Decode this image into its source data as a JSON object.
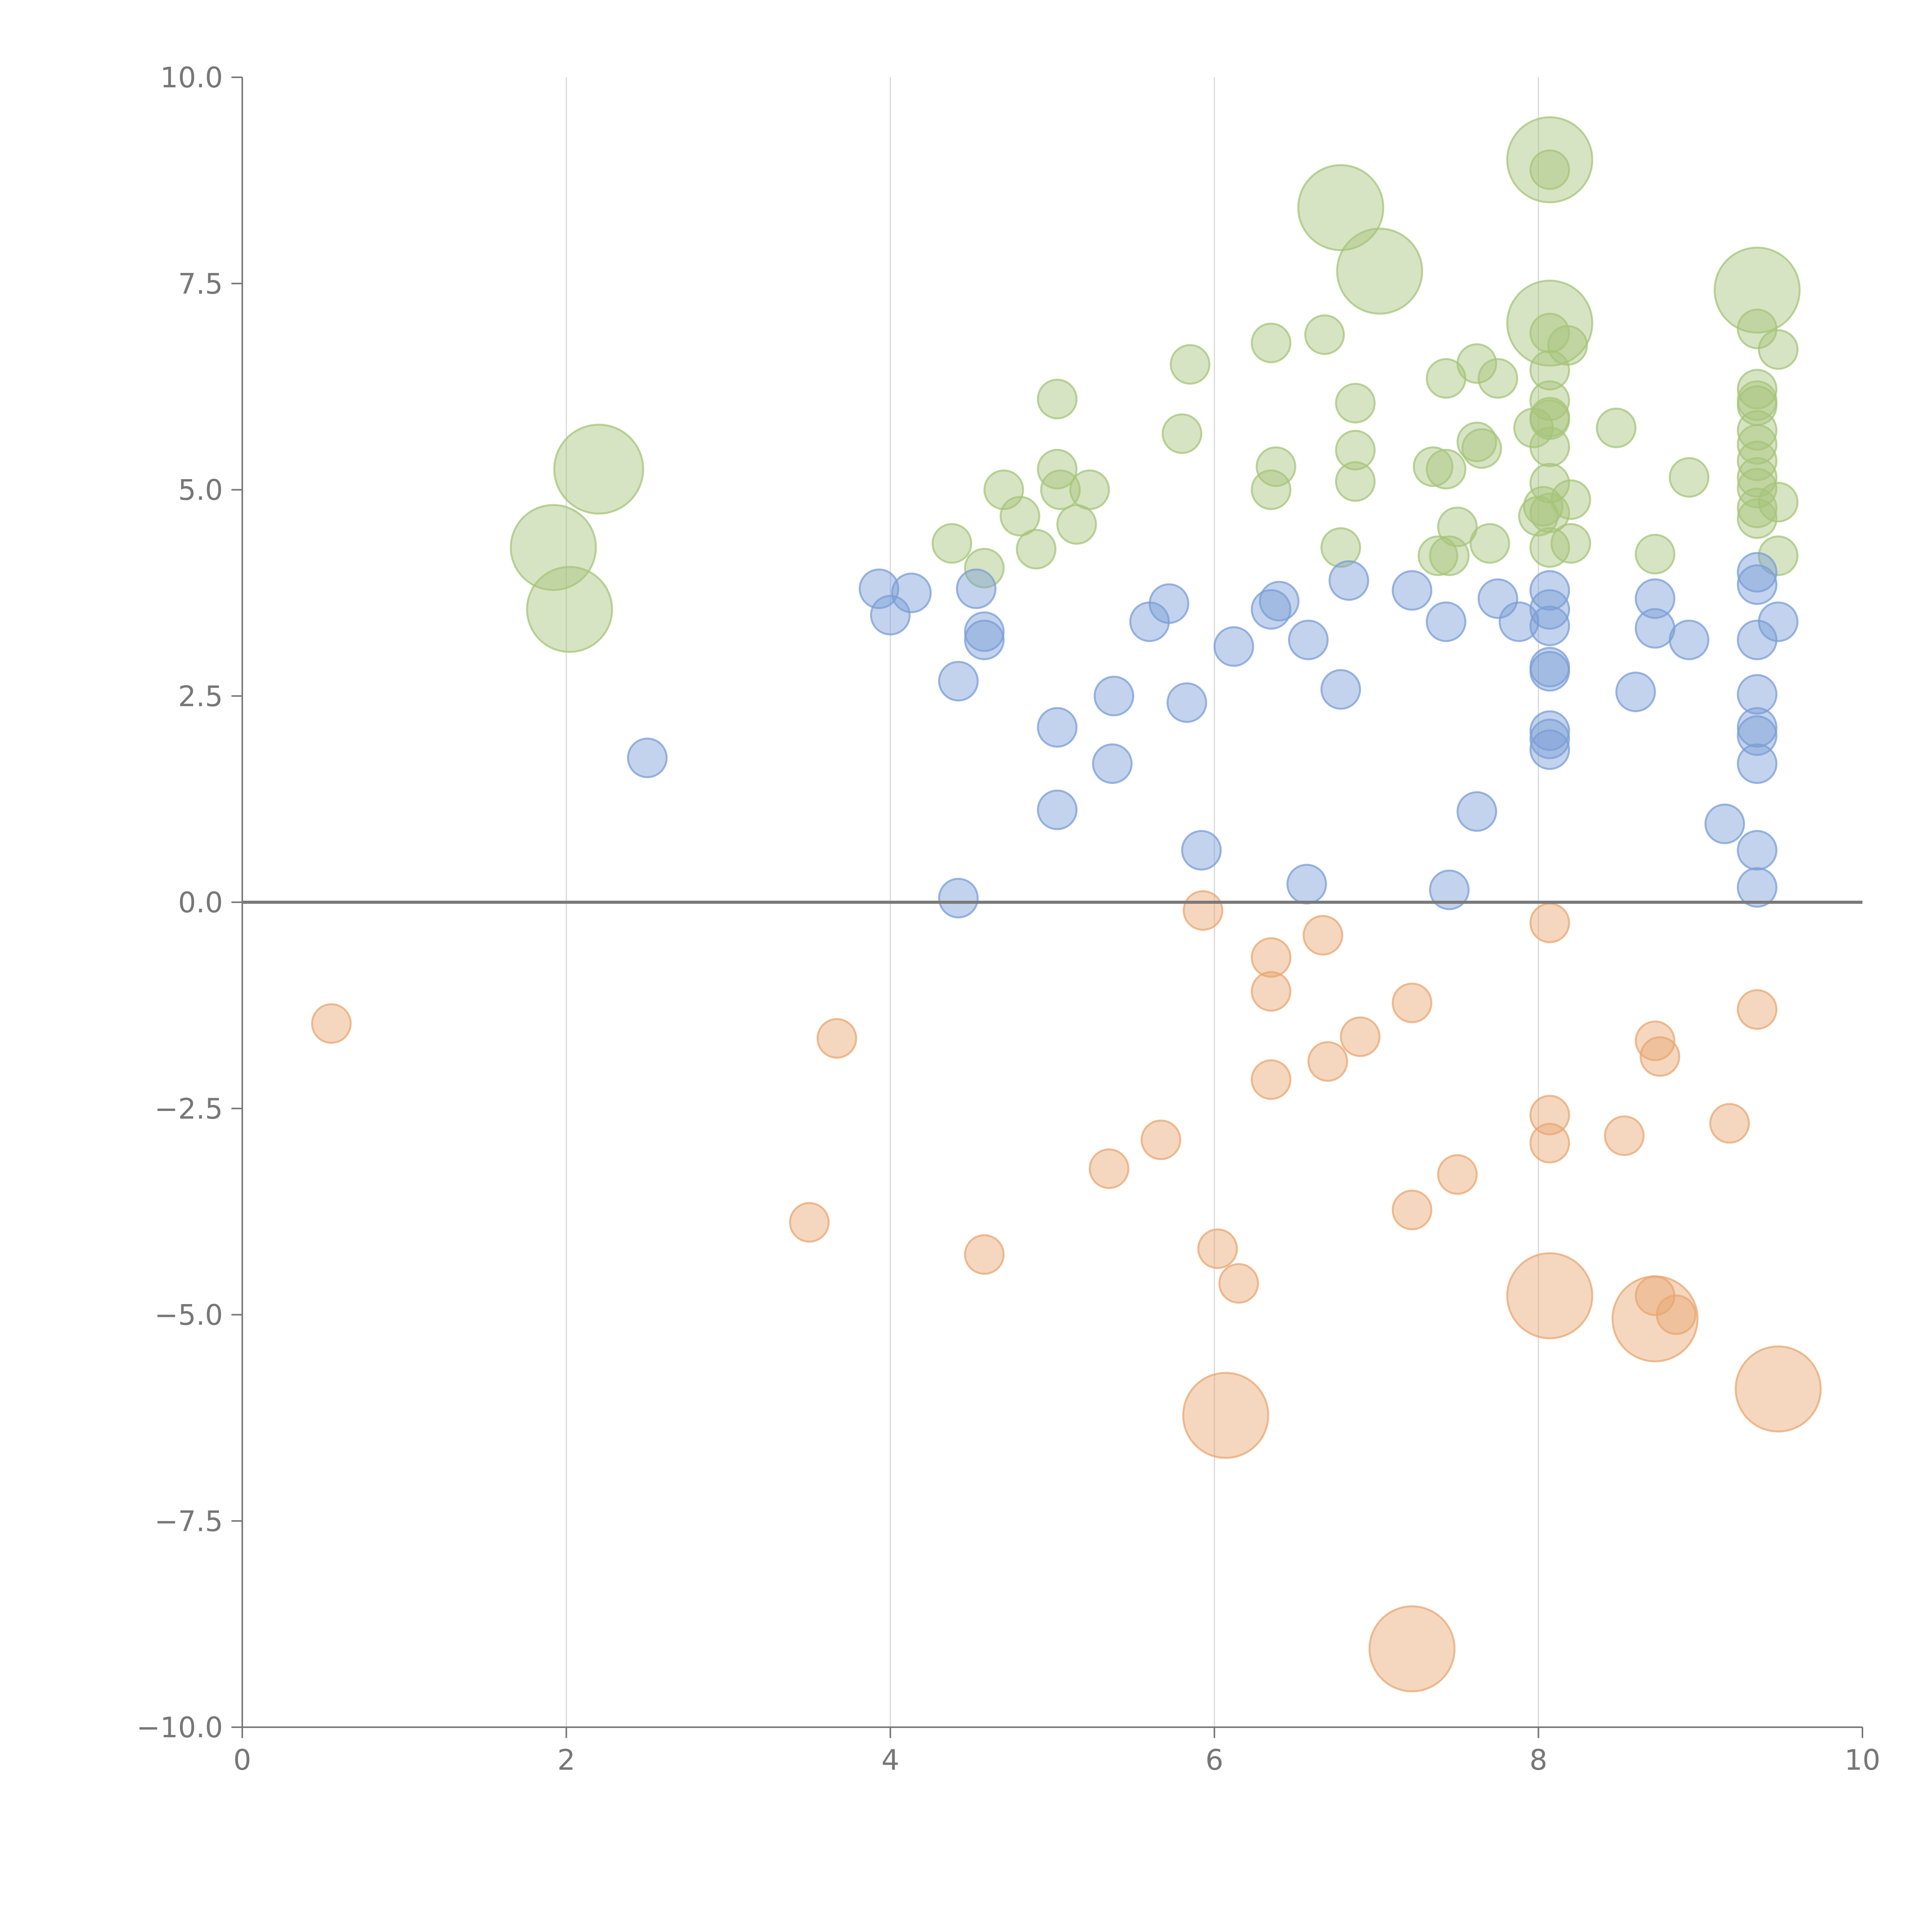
{
  "chart_data": {
    "type": "scatter",
    "title": "",
    "xlabel": "",
    "ylabel": "",
    "xlim": [
      0,
      10
    ],
    "ylim": [
      -10,
      10
    ],
    "x_ticks": [
      0,
      2,
      4,
      6,
      8,
      10
    ],
    "x_tick_labels": [
      "0",
      "2",
      "4",
      "6",
      "8",
      "10"
    ],
    "y_ticks": [
      10,
      7.5,
      5,
      2.5,
      0,
      -2.5,
      -5,
      -7.5,
      -10
    ],
    "y_tick_labels": [
      "10.0",
      "7.5",
      "5.0",
      "2.5",
      "0.0",
      "−2.5",
      "−5.0",
      "−7.5",
      "−10.0"
    ],
    "grid": "vertical",
    "reference_line_y": 0,
    "series": [
      {
        "name": "green",
        "color": "#a6c47a",
        "points": [
          {
            "x": 1.92,
            "y": 4.3,
            "size": 2.2
          },
          {
            "x": 2.02,
            "y": 3.55,
            "size": 2.2
          },
          {
            "x": 2.2,
            "y": 5.25,
            "size": 2.3
          },
          {
            "x": 4.38,
            "y": 4.35,
            "size": 1
          },
          {
            "x": 4.58,
            "y": 4.05,
            "size": 1
          },
          {
            "x": 4.7,
            "y": 5.0,
            "size": 1
          },
          {
            "x": 4.8,
            "y": 4.68,
            "size": 1
          },
          {
            "x": 4.9,
            "y": 4.28,
            "size": 1
          },
          {
            "x": 5.03,
            "y": 6.1,
            "size": 1
          },
          {
            "x": 5.03,
            "y": 5.25,
            "size": 1
          },
          {
            "x": 5.05,
            "y": 5.0,
            "size": 1
          },
          {
            "x": 5.15,
            "y": 4.58,
            "size": 1
          },
          {
            "x": 5.23,
            "y": 5.0,
            "size": 1
          },
          {
            "x": 5.8,
            "y": 5.68,
            "size": 1
          },
          {
            "x": 5.85,
            "y": 6.52,
            "size": 1
          },
          {
            "x": 6.35,
            "y": 6.78,
            "size": 1
          },
          {
            "x": 6.35,
            "y": 5.0,
            "size": 1
          },
          {
            "x": 6.38,
            "y": 5.28,
            "size": 1
          },
          {
            "x": 6.68,
            "y": 6.88,
            "size": 1
          },
          {
            "x": 6.78,
            "y": 8.42,
            "size": 2.2
          },
          {
            "x": 6.78,
            "y": 4.3,
            "size": 1
          },
          {
            "x": 6.87,
            "y": 6.05,
            "size": 1
          },
          {
            "x": 6.87,
            "y": 5.48,
            "size": 1
          },
          {
            "x": 6.87,
            "y": 5.1,
            "size": 1
          },
          {
            "x": 7.02,
            "y": 7.65,
            "size": 2.2
          },
          {
            "x": 7.35,
            "y": 5.28,
            "size": 1
          },
          {
            "x": 7.38,
            "y": 4.2,
            "size": 1
          },
          {
            "x": 7.43,
            "y": 6.35,
            "size": 1
          },
          {
            "x": 7.43,
            "y": 5.25,
            "size": 1
          },
          {
            "x": 7.45,
            "y": 4.2,
            "size": 1
          },
          {
            "x": 7.5,
            "y": 4.55,
            "size": 1
          },
          {
            "x": 7.62,
            "y": 6.53,
            "size": 1
          },
          {
            "x": 7.62,
            "y": 5.58,
            "size": 1
          },
          {
            "x": 7.65,
            "y": 5.5,
            "size": 1
          },
          {
            "x": 7.7,
            "y": 4.35,
            "size": 1
          },
          {
            "x": 7.75,
            "y": 6.35,
            "size": 1
          },
          {
            "x": 7.97,
            "y": 5.75,
            "size": 1
          },
          {
            "x": 8.0,
            "y": 4.68,
            "size": 1
          },
          {
            "x": 8.03,
            "y": 4.8,
            "size": 1
          },
          {
            "x": 8.07,
            "y": 9.0,
            "size": 2.2
          },
          {
            "x": 8.07,
            "y": 8.88,
            "size": 1
          },
          {
            "x": 8.07,
            "y": 7.02,
            "size": 2.2
          },
          {
            "x": 8.07,
            "y": 6.9,
            "size": 1
          },
          {
            "x": 8.07,
            "y": 6.45,
            "size": 1
          },
          {
            "x": 8.07,
            "y": 6.08,
            "size": 1
          },
          {
            "x": 8.07,
            "y": 5.88,
            "size": 1
          },
          {
            "x": 8.07,
            "y": 5.85,
            "size": 1
          },
          {
            "x": 8.07,
            "y": 5.52,
            "size": 1
          },
          {
            "x": 8.07,
            "y": 5.08,
            "size": 1
          },
          {
            "x": 8.07,
            "y": 4.72,
            "size": 1
          },
          {
            "x": 8.07,
            "y": 4.3,
            "size": 1
          },
          {
            "x": 8.18,
            "y": 6.75,
            "size": 1
          },
          {
            "x": 8.2,
            "y": 4.88,
            "size": 1
          },
          {
            "x": 8.2,
            "y": 4.35,
            "size": 1
          },
          {
            "x": 8.48,
            "y": 5.75,
            "size": 1
          },
          {
            "x": 8.72,
            "y": 4.22,
            "size": 1
          },
          {
            "x": 8.93,
            "y": 5.15,
            "size": 1
          },
          {
            "x": 9.35,
            "y": 7.42,
            "size": 2.2
          },
          {
            "x": 9.35,
            "y": 6.95,
            "size": 1
          },
          {
            "x": 9.35,
            "y": 6.22,
            "size": 1
          },
          {
            "x": 9.35,
            "y": 6.08,
            "size": 1
          },
          {
            "x": 9.35,
            "y": 6.02,
            "size": 1
          },
          {
            "x": 9.35,
            "y": 5.72,
            "size": 1
          },
          {
            "x": 9.35,
            "y": 5.55,
            "size": 1
          },
          {
            "x": 9.35,
            "y": 5.35,
            "size": 1
          },
          {
            "x": 9.35,
            "y": 5.15,
            "size": 1
          },
          {
            "x": 9.35,
            "y": 5.02,
            "size": 1
          },
          {
            "x": 9.35,
            "y": 4.78,
            "size": 1
          },
          {
            "x": 9.35,
            "y": 4.65,
            "size": 1
          },
          {
            "x": 9.48,
            "y": 6.7,
            "size": 1
          },
          {
            "x": 9.48,
            "y": 4.85,
            "size": 1
          },
          {
            "x": 9.48,
            "y": 4.2,
            "size": 1
          }
        ]
      },
      {
        "name": "blue",
        "color": "#7a9ed6",
        "points": [
          {
            "x": 2.5,
            "y": 1.75,
            "size": 1
          },
          {
            "x": 3.93,
            "y": 3.8,
            "size": 1
          },
          {
            "x": 4.0,
            "y": 3.48,
            "size": 1
          },
          {
            "x": 4.13,
            "y": 3.75,
            "size": 1
          },
          {
            "x": 4.42,
            "y": 0.05,
            "size": 1
          },
          {
            "x": 4.42,
            "y": 2.68,
            "size": 1
          },
          {
            "x": 4.53,
            "y": 3.8,
            "size": 1
          },
          {
            "x": 4.58,
            "y": 3.28,
            "size": 1
          },
          {
            "x": 4.58,
            "y": 3.18,
            "size": 1
          },
          {
            "x": 5.03,
            "y": 2.12,
            "size": 1
          },
          {
            "x": 5.03,
            "y": 1.12,
            "size": 1
          },
          {
            "x": 5.37,
            "y": 1.68,
            "size": 1
          },
          {
            "x": 5.38,
            "y": 2.5,
            "size": 1
          },
          {
            "x": 5.6,
            "y": 3.4,
            "size": 1
          },
          {
            "x": 5.72,
            "y": 3.62,
            "size": 1
          },
          {
            "x": 5.83,
            "y": 2.42,
            "size": 1
          },
          {
            "x": 5.92,
            "y": 0.63,
            "size": 1
          },
          {
            "x": 6.12,
            "y": 3.1,
            "size": 1
          },
          {
            "x": 6.35,
            "y": 3.55,
            "size": 1
          },
          {
            "x": 6.4,
            "y": 3.65,
            "size": 1
          },
          {
            "x": 6.57,
            "y": 0.22,
            "size": 1
          },
          {
            "x": 6.58,
            "y": 3.18,
            "size": 1
          },
          {
            "x": 6.78,
            "y": 2.58,
            "size": 1
          },
          {
            "x": 6.83,
            "y": 3.9,
            "size": 1
          },
          {
            "x": 7.22,
            "y": 3.78,
            "size": 1
          },
          {
            "x": 7.43,
            "y": 3.4,
            "size": 1
          },
          {
            "x": 7.45,
            "y": 0.15,
            "size": 1
          },
          {
            "x": 7.62,
            "y": 1.1,
            "size": 1
          },
          {
            "x": 7.75,
            "y": 3.68,
            "size": 1
          },
          {
            "x": 7.88,
            "y": 3.4,
            "size": 1
          },
          {
            "x": 8.07,
            "y": 3.78,
            "size": 1
          },
          {
            "x": 8.07,
            "y": 3.55,
            "size": 1
          },
          {
            "x": 8.07,
            "y": 3.35,
            "size": 1
          },
          {
            "x": 8.07,
            "y": 2.85,
            "size": 1
          },
          {
            "x": 8.07,
            "y": 2.8,
            "size": 1
          },
          {
            "x": 8.07,
            "y": 2.08,
            "size": 1
          },
          {
            "x": 8.07,
            "y": 1.98,
            "size": 1
          },
          {
            "x": 8.07,
            "y": 1.85,
            "size": 1
          },
          {
            "x": 8.6,
            "y": 2.55,
            "size": 1
          },
          {
            "x": 8.72,
            "y": 3.68,
            "size": 1
          },
          {
            "x": 8.72,
            "y": 3.32,
            "size": 1
          },
          {
            "x": 8.93,
            "y": 3.18,
            "size": 1
          },
          {
            "x": 9.15,
            "y": 0.95,
            "size": 1
          },
          {
            "x": 9.35,
            "y": 4.0,
            "size": 1
          },
          {
            "x": 9.35,
            "y": 3.85,
            "size": 1
          },
          {
            "x": 9.35,
            "y": 3.18,
            "size": 1
          },
          {
            "x": 9.35,
            "y": 2.52,
            "size": 1
          },
          {
            "x": 9.35,
            "y": 2.12,
            "size": 1
          },
          {
            "x": 9.35,
            "y": 2.02,
            "size": 1
          },
          {
            "x": 9.35,
            "y": 1.68,
            "size": 1
          },
          {
            "x": 9.35,
            "y": 0.63,
            "size": 1
          },
          {
            "x": 9.35,
            "y": 0.18,
            "size": 1
          },
          {
            "x": 9.48,
            "y": 3.4,
            "size": 1
          }
        ]
      },
      {
        "name": "orange",
        "color": "#e8a772",
        "points": [
          {
            "x": 0.55,
            "y": -1.47,
            "size": 1
          },
          {
            "x": 3.5,
            "y": -3.88,
            "size": 1
          },
          {
            "x": 3.67,
            "y": -1.65,
            "size": 1
          },
          {
            "x": 4.58,
            "y": -4.27,
            "size": 1
          },
          {
            "x": 5.35,
            "y": -3.23,
            "size": 1
          },
          {
            "x": 5.67,
            "y": -2.88,
            "size": 1
          },
          {
            "x": 5.93,
            "y": -0.1,
            "size": 1
          },
          {
            "x": 6.02,
            "y": -4.2,
            "size": 1
          },
          {
            "x": 6.07,
            "y": -6.22,
            "size": 2.2
          },
          {
            "x": 6.15,
            "y": -4.62,
            "size": 1
          },
          {
            "x": 6.35,
            "y": -0.67,
            "size": 1
          },
          {
            "x": 6.35,
            "y": -1.08,
            "size": 1
          },
          {
            "x": 6.35,
            "y": -2.15,
            "size": 1
          },
          {
            "x": 6.67,
            "y": -0.4,
            "size": 1
          },
          {
            "x": 6.7,
            "y": -1.93,
            "size": 1
          },
          {
            "x": 6.9,
            "y": -1.63,
            "size": 1
          },
          {
            "x": 7.22,
            "y": -1.22,
            "size": 1
          },
          {
            "x": 7.22,
            "y": -3.73,
            "size": 1
          },
          {
            "x": 7.22,
            "y": -9.05,
            "size": 2.2
          },
          {
            "x": 7.5,
            "y": -3.3,
            "size": 1
          },
          {
            "x": 8.07,
            "y": -0.25,
            "size": 1
          },
          {
            "x": 8.07,
            "y": -2.58,
            "size": 1
          },
          {
            "x": 8.07,
            "y": -2.92,
            "size": 1
          },
          {
            "x": 8.07,
            "y": -4.77,
            "size": 2.2
          },
          {
            "x": 8.53,
            "y": -2.83,
            "size": 1
          },
          {
            "x": 8.72,
            "y": -1.68,
            "size": 1
          },
          {
            "x": 8.72,
            "y": -4.77,
            "size": 1
          },
          {
            "x": 8.72,
            "y": -5.05,
            "size": 2.2
          },
          {
            "x": 8.75,
            "y": -1.87,
            "size": 1
          },
          {
            "x": 8.85,
            "y": -5.0,
            "size": 1
          },
          {
            "x": 9.18,
            "y": -2.68,
            "size": 1
          },
          {
            "x": 9.35,
            "y": -1.3,
            "size": 1
          },
          {
            "x": 9.48,
            "y": -5.9,
            "size": 2.2
          }
        ]
      }
    ]
  }
}
